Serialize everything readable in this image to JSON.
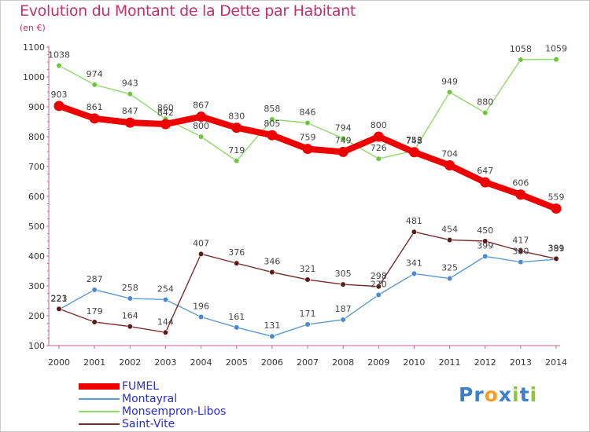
{
  "title": "Evolution du Montant de la Dette par Habitant",
  "subtitle": "(en €)",
  "chart_data": {
    "type": "line",
    "title": "Evolution du Montant de la Dette par Habitant",
    "subtitle": "(en €)",
    "xlabel": "",
    "ylabel": "",
    "ylim": [
      100,
      1100
    ],
    "yticks": [
      100,
      200,
      300,
      400,
      500,
      600,
      700,
      800,
      900,
      1000,
      1100
    ],
    "x": [
      "2000",
      "2001",
      "2002",
      "2003",
      "2004",
      "2005",
      "2006",
      "2007",
      "2008",
      "2009",
      "2010",
      "2011",
      "2012",
      "2013",
      "2014"
    ],
    "grid": false,
    "legend_position": "bottom-left",
    "series": [
      {
        "name": "FUMEL",
        "color": "#ee0000",
        "emphasis": true,
        "values": [
          903,
          861,
          847,
          842,
          867,
          830,
          805,
          759,
          749,
          800,
          748,
          704,
          647,
          606,
          559
        ]
      },
      {
        "name": "Montayral",
        "color": "#5b9bd5",
        "marker": "#4a8ad0",
        "values": [
          221,
          287,
          258,
          254,
          196,
          161,
          131,
          171,
          187,
          270,
          341,
          325,
          399,
          380,
          389
        ]
      },
      {
        "name": "Monsempron-Libos",
        "color": "#8fd96a",
        "marker": "#6cc63a",
        "values": [
          1038,
          974,
          943,
          860,
          800,
          719,
          858,
          846,
          794,
          726,
          753,
          949,
          880,
          1058,
          1059
        ]
      },
      {
        "name": "Saint-Vite",
        "color": "#7a2a2a",
        "marker": "#5c1a1a",
        "values": [
          223,
          179,
          164,
          144,
          407,
          376,
          346,
          321,
          305,
          298,
          481,
          454,
          450,
          417,
          391
        ]
      }
    ],
    "data_labels": {
      "FUMEL": [
        "903",
        "861",
        "847",
        "842",
        "867",
        "830",
        "805",
        "759",
        "749",
        "800",
        "748",
        "704",
        "647",
        "606",
        "559"
      ],
      "Montayral": [
        "221",
        "287",
        "258",
        "254",
        "196",
        "161",
        "131",
        "171",
        "187",
        "270",
        "341",
        "325",
        "399",
        "380",
        "389"
      ],
      "Monsempron-Libos": [
        "1038",
        "974",
        "943",
        "860",
        "800",
        "719",
        "858",
        "846",
        "794",
        "726",
        "753",
        "949",
        "880",
        "1058",
        "1059"
      ],
      "Saint-Vite": [
        "223",
        "179",
        "164",
        "144",
        "407",
        "376",
        "346",
        "321",
        "305",
        "298",
        "481",
        "454",
        "450",
        "417",
        "391"
      ]
    }
  },
  "logo": {
    "text_parts": [
      {
        "text": "P",
        "color": "#3a7fd0"
      },
      {
        "text": "r",
        "color": "#3a7fd0"
      },
      {
        "text": "o",
        "color": "#f0a020"
      },
      {
        "text": "x",
        "color": "#3a7fd0"
      },
      {
        "text": "i",
        "color": "#8cc63f"
      },
      {
        "text": "t",
        "color": "#3a7fd0"
      },
      {
        "text": "i",
        "color": "#8cc63f"
      }
    ]
  }
}
